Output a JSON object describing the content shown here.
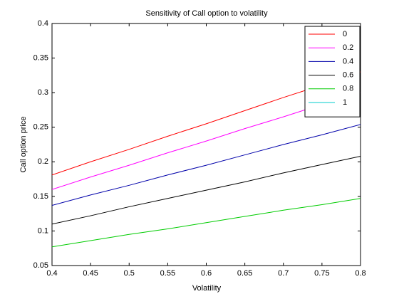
{
  "chart_data": {
    "type": "line",
    "title": "Sensitivity of Call option to volatility",
    "x_label": "Volatility",
    "y_label": "Call option price",
    "x": [
      0.4,
      0.45,
      0.5,
      0.55,
      0.6,
      0.65,
      0.7,
      0.75,
      0.8
    ],
    "series": [
      {
        "name": "0",
        "color": "#ff0000",
        "values": [
          0.181,
          0.2,
          0.218,
          0.237,
          0.255,
          0.274,
          0.293,
          0.311,
          0.33
        ]
      },
      {
        "name": "0.2",
        "color": "#ff00ff",
        "values": [
          0.16,
          0.178,
          0.195,
          0.213,
          0.23,
          0.248,
          0.265,
          0.283,
          0.3
        ]
      },
      {
        "name": "0.4",
        "color": "#0000aa",
        "values": [
          0.137,
          0.152,
          0.166,
          0.181,
          0.195,
          0.21,
          0.225,
          0.239,
          0.254
        ]
      },
      {
        "name": "0.6",
        "color": "#000000",
        "values": [
          0.11,
          0.122,
          0.135,
          0.147,
          0.159,
          0.171,
          0.184,
          0.196,
          0.208
        ]
      },
      {
        "name": "0.8",
        "color": "#00cc00",
        "values": [
          0.077,
          0.086,
          0.095,
          0.103,
          0.112,
          0.121,
          0.13,
          0.138,
          0.147
        ]
      },
      {
        "name": "1",
        "color": "#00cccc",
        "values": [
          null,
          null,
          null,
          null,
          null,
          null,
          null,
          null,
          null
        ]
      }
    ],
    "xlim": [
      0.4,
      0.8
    ],
    "xticks": [
      0.4,
      0.45,
      0.5,
      0.55,
      0.6,
      0.65,
      0.7,
      0.75,
      0.8
    ],
    "ylim": [
      0.05,
      0.4
    ],
    "yticks": [
      0.05,
      0.1,
      0.15,
      0.2,
      0.25,
      0.3,
      0.35,
      0.4
    ],
    "legend": "top-right"
  }
}
